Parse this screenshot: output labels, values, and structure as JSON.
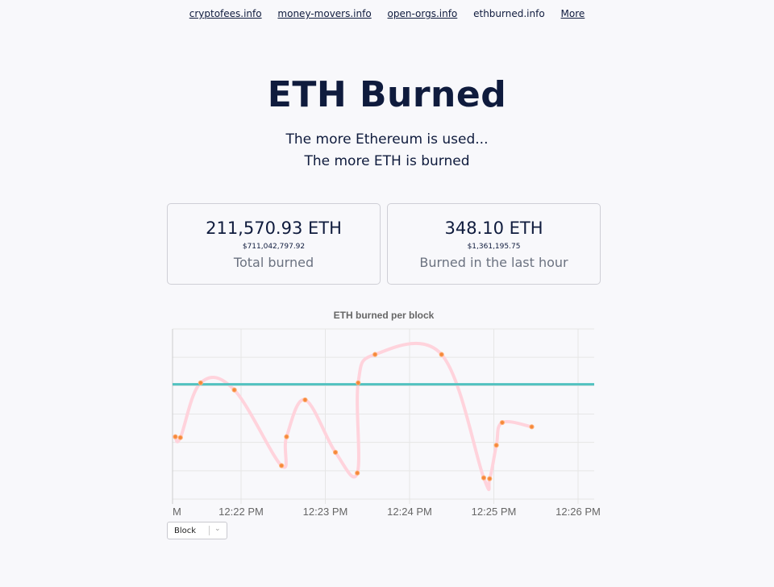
{
  "nav": {
    "links": [
      "cryptofees.info",
      "money-movers.info",
      "open-orgs.info"
    ],
    "current": "ethburned.info",
    "more": "More"
  },
  "header": {
    "title": "ETH Burned",
    "subtitle1": "The more Ethereum is used...",
    "subtitle2": "The more ETH is burned"
  },
  "cards": [
    {
      "eth": "211,570.93 ETH",
      "usd": "$711,042,797.92",
      "label": "Total burned"
    },
    {
      "eth": "348.10 ETH",
      "usd": "$1,361,195.75",
      "label": "Burned in the last hour"
    }
  ],
  "select": {
    "value": "Block"
  },
  "colors": {
    "burn_line": "#ffd3dc",
    "burn_points": "#f5883a",
    "average_line": "#52c2c0"
  },
  "chart_data": {
    "type": "line",
    "title": "ETH burned per block",
    "x_tick_labels": [
      "M",
      "12:22 PM",
      "12:23 PM",
      "12:24 PM",
      "12:25 PM",
      "12:26 PM"
    ],
    "y_tick_labels": [],
    "x_minutes": [
      -0.78,
      -0.72,
      -0.48,
      -0.08,
      0.48,
      0.54,
      0.76,
      1.12,
      1.38,
      1.39,
      1.59,
      2.38,
      2.88,
      2.95,
      3.03,
      3.1,
      3.45
    ],
    "values": [
      2.2,
      2.17,
      4.1,
      3.85,
      1.18,
      2.2,
      3.5,
      1.65,
      0.92,
      4.1,
      5.1,
      5.1,
      0.75,
      0.72,
      1.9,
      2.7,
      2.55
    ],
    "average_value": 4.05,
    "grid": true,
    "legend": "none"
  }
}
